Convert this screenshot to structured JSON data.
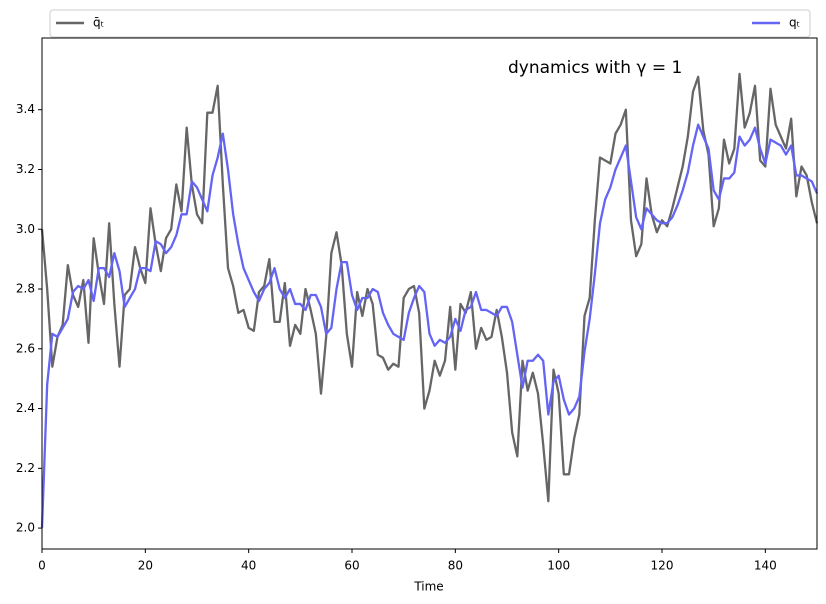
{
  "chart_data": {
    "type": "line",
    "annotation": "dynamics with γ = 1",
    "xlabel": "Time",
    "x": [
      0,
      1,
      2,
      3,
      4,
      5,
      6,
      7,
      8,
      9,
      10,
      11,
      12,
      13,
      14,
      15,
      16,
      17,
      18,
      19,
      20,
      21,
      22,
      23,
      24,
      25,
      26,
      27,
      28,
      29,
      30,
      31,
      32,
      33,
      34,
      35,
      36,
      37,
      38,
      39,
      40,
      41,
      42,
      43,
      44,
      45,
      46,
      47,
      48,
      49,
      50,
      51,
      52,
      53,
      54,
      55,
      56,
      57,
      58,
      59,
      60,
      61,
      62,
      63,
      64,
      65,
      66,
      67,
      68,
      69,
      70,
      71,
      72,
      73,
      74,
      75,
      76,
      77,
      78,
      79,
      80,
      81,
      82,
      83,
      84,
      85,
      86,
      87,
      88,
      89,
      90,
      91,
      92,
      93,
      94,
      95,
      96,
      97,
      98,
      99,
      100,
      101,
      102,
      103,
      104,
      105,
      106,
      107,
      108,
      109,
      110,
      111,
      112,
      113,
      114,
      115,
      116,
      117,
      118,
      119,
      120,
      121,
      122,
      123,
      124,
      125,
      126,
      127,
      128,
      129,
      130,
      131,
      132,
      133,
      134,
      135,
      136,
      137,
      138,
      139,
      140,
      141,
      142,
      143,
      144,
      145,
      146,
      147,
      148,
      149,
      150
    ],
    "series": [
      {
        "name": "q̄ₜ",
        "color": "#666666",
        "values": [
          3.0,
          2.8,
          2.54,
          2.64,
          2.68,
          2.88,
          2.78,
          2.74,
          2.83,
          2.62,
          2.97,
          2.85,
          2.75,
          3.02,
          2.75,
          2.54,
          2.78,
          2.8,
          2.94,
          2.87,
          2.82,
          3.07,
          2.95,
          2.86,
          2.97,
          3.0,
          3.15,
          3.06,
          3.34,
          3.15,
          3.05,
          3.02,
          3.39,
          3.39,
          3.48,
          3.15,
          2.87,
          2.81,
          2.72,
          2.73,
          2.67,
          2.66,
          2.79,
          2.81,
          2.9,
          2.69,
          2.69,
          2.82,
          2.61,
          2.68,
          2.65,
          2.8,
          2.73,
          2.65,
          2.45,
          2.64,
          2.92,
          2.99,
          2.88,
          2.65,
          2.54,
          2.79,
          2.71,
          2.8,
          2.75,
          2.58,
          2.57,
          2.53,
          2.55,
          2.54,
          2.77,
          2.8,
          2.81,
          2.72,
          2.4,
          2.46,
          2.56,
          2.51,
          2.56,
          2.74,
          2.53,
          2.75,
          2.72,
          2.79,
          2.6,
          2.67,
          2.63,
          2.64,
          2.73,
          2.64,
          2.52,
          2.32,
          2.24,
          2.56,
          2.46,
          2.52,
          2.45,
          2.28,
          2.09,
          2.53,
          2.45,
          2.18,
          2.18,
          2.3,
          2.38,
          2.71,
          2.77,
          3.03,
          3.24,
          3.23,
          3.22,
          3.32,
          3.35,
          3.4,
          3.03,
          2.91,
          2.95,
          3.17,
          3.05,
          2.99,
          3.03,
          3.01,
          3.07,
          3.14,
          3.21,
          3.31,
          3.46,
          3.51,
          3.33,
          3.25,
          3.01,
          3.07,
          3.3,
          3.22,
          3.27,
          3.52,
          3.34,
          3.39,
          3.48,
          3.23,
          3.21,
          3.47,
          3.35,
          3.31,
          3.27,
          3.37,
          3.11,
          3.21,
          3.18,
          3.09,
          3.02
        ]
      },
      {
        "name": "qₜ",
        "color": "#6464f5",
        "values": [
          2.0,
          2.48,
          2.65,
          2.64,
          2.67,
          2.7,
          2.79,
          2.81,
          2.8,
          2.83,
          2.76,
          2.87,
          2.87,
          2.84,
          2.92,
          2.86,
          2.74,
          2.77,
          2.8,
          2.87,
          2.87,
          2.86,
          2.96,
          2.95,
          2.92,
          2.94,
          2.98,
          3.05,
          3.05,
          3.16,
          3.14,
          3.1,
          3.06,
          3.18,
          3.24,
          3.32,
          3.2,
          3.05,
          2.95,
          2.87,
          2.83,
          2.79,
          2.76,
          2.8,
          2.82,
          2.87,
          2.8,
          2.77,
          2.8,
          2.75,
          2.75,
          2.73,
          2.78,
          2.78,
          2.74,
          2.65,
          2.67,
          2.8,
          2.89,
          2.89,
          2.78,
          2.73,
          2.77,
          2.77,
          2.8,
          2.79,
          2.72,
          2.68,
          2.65,
          2.64,
          2.63,
          2.72,
          2.77,
          2.81,
          2.79,
          2.65,
          2.61,
          2.63,
          2.62,
          2.64,
          2.7,
          2.66,
          2.73,
          2.74,
          2.79,
          2.73,
          2.73,
          2.72,
          2.71,
          2.74,
          2.74,
          2.69,
          2.58,
          2.47,
          2.56,
          2.56,
          2.58,
          2.56,
          2.38,
          2.49,
          2.51,
          2.43,
          2.38,
          2.4,
          2.44,
          2.59,
          2.7,
          2.85,
          3.02,
          3.1,
          3.14,
          3.2,
          3.24,
          3.28,
          3.16,
          3.04,
          3.0,
          3.07,
          3.05,
          3.03,
          3.02,
          3.02,
          3.04,
          3.08,
          3.13,
          3.19,
          3.28,
          3.35,
          3.31,
          3.27,
          3.13,
          3.1,
          3.17,
          3.17,
          3.19,
          3.31,
          3.28,
          3.3,
          3.34,
          3.27,
          3.22,
          3.3,
          3.29,
          3.28,
          3.25,
          3.28,
          3.18,
          3.18,
          3.17,
          3.16,
          3.12
        ]
      }
    ],
    "xlim": [
      0,
      150
    ],
    "xticks": [
      0,
      20,
      40,
      60,
      80,
      100,
      120,
      140
    ],
    "ylim": [
      1.93,
      3.64
    ],
    "yticks": [
      {
        "value": 2,
        "label": "2.0"
      },
      2.2,
      2.4,
      2.6,
      2.8,
      {
        "value": 3,
        "label": "3.0"
      },
      3.2,
      3.4
    ]
  }
}
